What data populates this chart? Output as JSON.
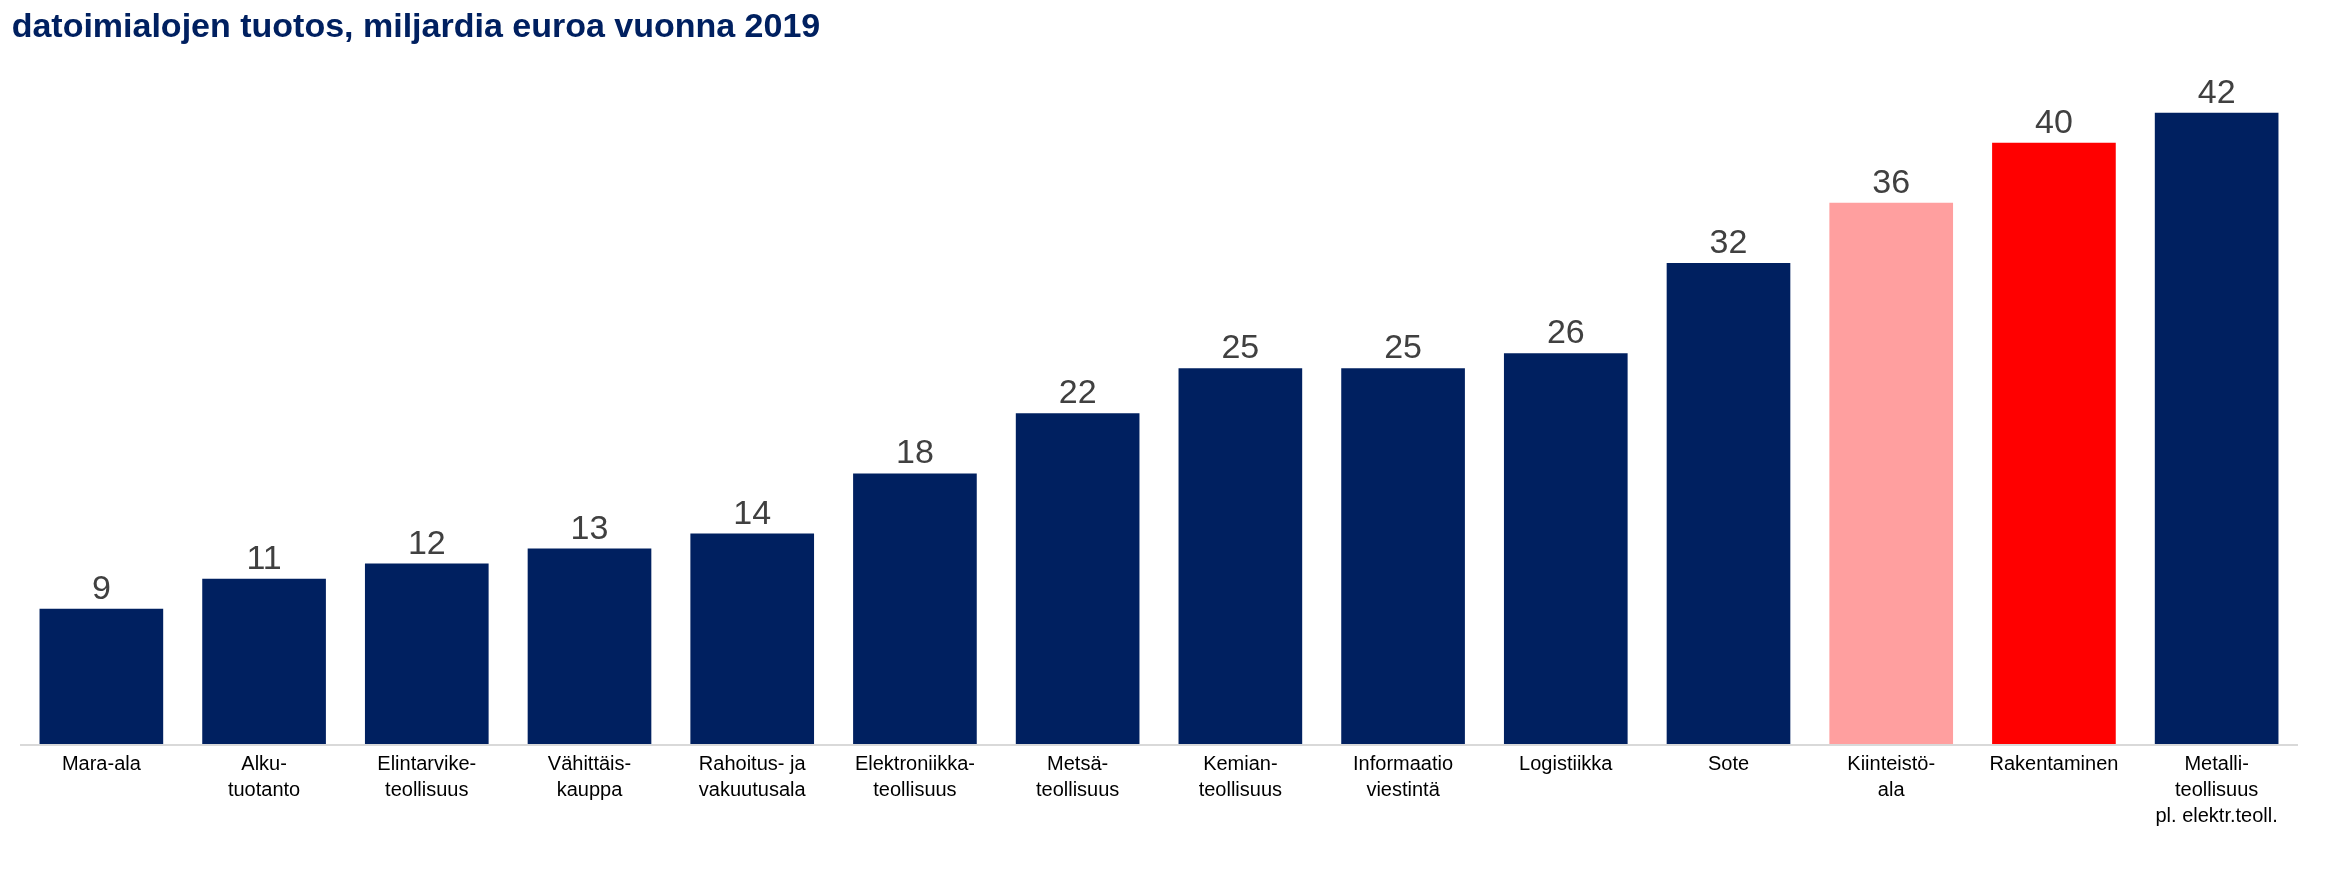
{
  "chart_data": {
    "type": "bar",
    "title": "datoimialojen tuotos, miljardia euroa vuonna 2019",
    "categories": [
      "Mara-ala",
      "Alku-\ntuotanto",
      "Elintarvike-\nteollisuus",
      "Vähittäis-\nkauppa",
      "Rahoitus- ja\nvakuutusala",
      "Elektroniikka-\nteollisuus",
      "Metsä-\nteollisuus",
      "Kemian-\nteollisuus",
      "Informaatio\nviestintä",
      "Logistiikka",
      "Sote",
      "Kiinteistö-\nala",
      "Rakentaminen",
      "Metalli-\nteollisuus\npl. elektr.teoll."
    ],
    "values": [
      9,
      11,
      12,
      13,
      14,
      18,
      22,
      25,
      25,
      26,
      32,
      36,
      40,
      42
    ],
    "colors": [
      "#002060",
      "#002060",
      "#002060",
      "#002060",
      "#002060",
      "#002060",
      "#002060",
      "#002060",
      "#002060",
      "#002060",
      "#002060",
      "#ff9f9f",
      "#ff0000",
      "#002060"
    ],
    "data_labels": true
  }
}
